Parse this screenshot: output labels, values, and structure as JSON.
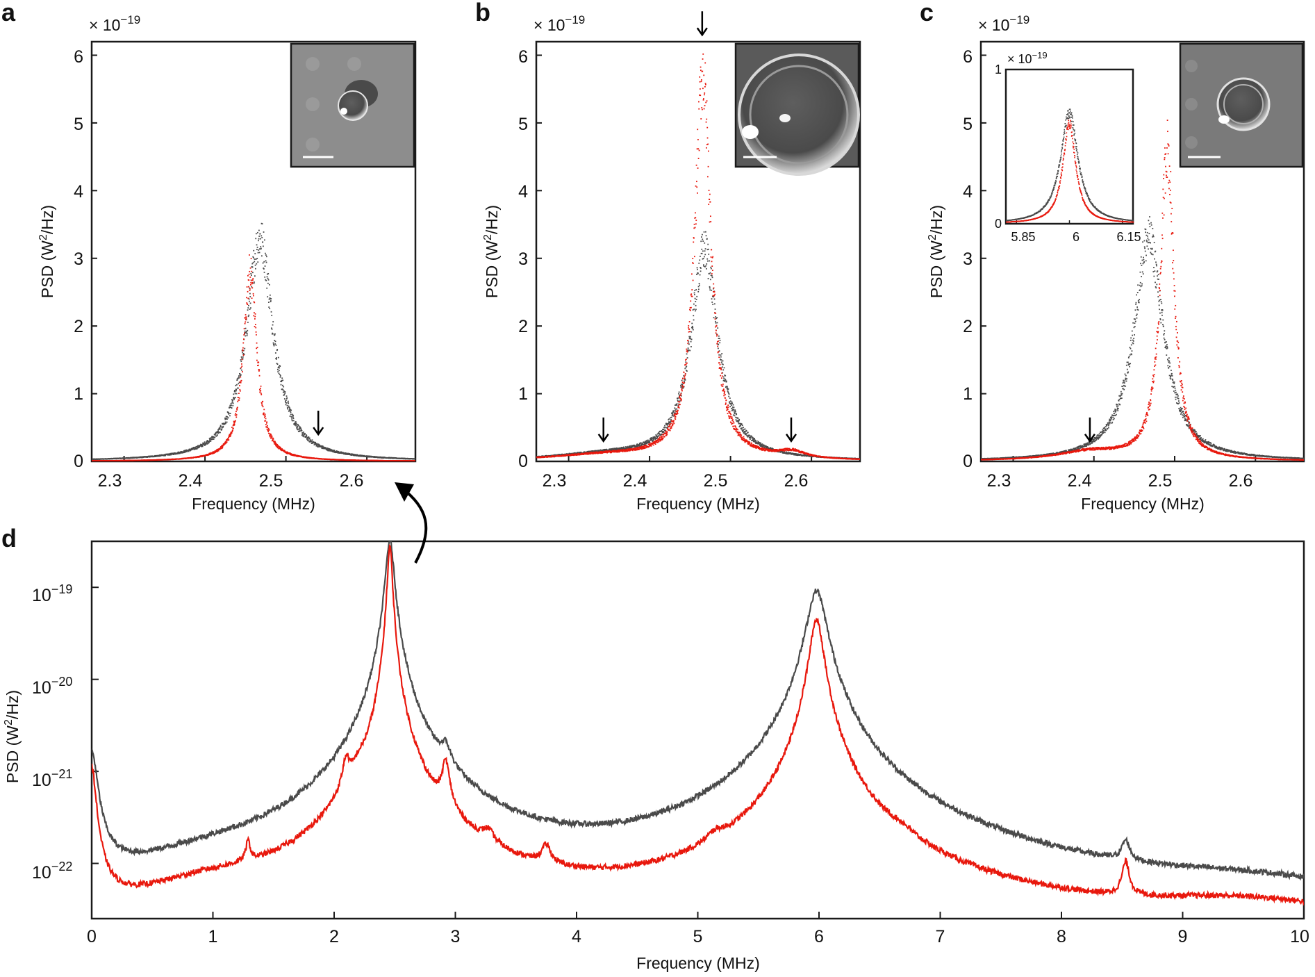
{
  "colors": {
    "grey": "#4a4a4a",
    "red": "#e8180d",
    "axis": "#1a1a1a"
  },
  "chart_data": [
    {
      "panel": "a",
      "type": "scatter",
      "xlabel": "Frequency (MHz)",
      "ylabel_pre": "PSD (W",
      "ylabel_sup": "2",
      "ylabel_post": "/Hz)",
      "multiplier_pre": "× 10",
      "multiplier_exp": "−19",
      "xlim": [
        2.26,
        2.66
      ],
      "ylim": [
        0,
        6.2
      ],
      "xticks": [
        "2.3",
        "2.4",
        "2.5",
        "2.6"
      ],
      "xtick_values": [
        2.3,
        2.4,
        2.5,
        2.6
      ],
      "yticks": [
        "0",
        "1",
        "2",
        "3",
        "4",
        "5",
        "6"
      ],
      "yticks_values": [
        0,
        1,
        2,
        3,
        4,
        5,
        6
      ],
      "series": [
        {
          "name": "grey",
          "center": 2.467,
          "peak": 3.3,
          "width": 0.02
        },
        {
          "name": "red",
          "center": 2.455,
          "peak": 2.8,
          "width": 0.01
        }
      ],
      "arrows": [
        {
          "x": 2.54,
          "y": 0.4
        }
      ],
      "inset_image": "bubble-micrograph"
    },
    {
      "panel": "b",
      "type": "scatter",
      "xlabel": "Frequency (MHz)",
      "ylabel_pre": "PSD (W",
      "ylabel_sup": "2",
      "ylabel_post": "/Hz)",
      "multiplier_pre": "× 10",
      "multiplier_exp": "−19",
      "xlim": [
        2.26,
        2.66
      ],
      "ylim": [
        0,
        6.2
      ],
      "xticks": [
        "2.3",
        "2.4",
        "2.5",
        "2.6"
      ],
      "xtick_values": [
        2.3,
        2.4,
        2.5,
        2.6
      ],
      "yticks": [
        "0",
        "1",
        "2",
        "3",
        "4",
        "5",
        "6"
      ],
      "yticks_values": [
        0,
        1,
        2,
        3,
        4,
        5,
        6
      ],
      "series": [
        {
          "name": "grey",
          "center": 2.467,
          "peak": 3.1,
          "width": 0.02
        },
        {
          "name": "red",
          "center": 2.465,
          "peak": 5.7,
          "width": 0.012
        }
      ],
      "arrows": [
        {
          "x": 2.343,
          "y": 0.3
        },
        {
          "x": 2.465,
          "y": 6.3
        },
        {
          "x": 2.575,
          "y": 0.3
        }
      ],
      "inset_image": "bubble-micrograph"
    },
    {
      "panel": "c",
      "type": "scatter",
      "xlabel": "Frequency (MHz)",
      "ylabel_pre": "PSD (W",
      "ylabel_sup": "2",
      "ylabel_post": "/Hz)",
      "multiplier_pre": "× 10",
      "multiplier_exp": "−19",
      "xlim": [
        2.26,
        2.66
      ],
      "ylim": [
        0,
        6.2
      ],
      "xticks": [
        "2.3",
        "2.4",
        "2.5",
        "2.6"
      ],
      "xtick_values": [
        2.3,
        2.4,
        2.5,
        2.6
      ],
      "yticks": [
        "0",
        "1",
        "2",
        "3",
        "4",
        "5",
        "6"
      ],
      "yticks_values": [
        0,
        1,
        2,
        3,
        4,
        5,
        6
      ],
      "series": [
        {
          "name": "grey",
          "center": 2.467,
          "peak": 3.3,
          "width": 0.022
        },
        {
          "name": "red",
          "center": 2.49,
          "peak": 4.6,
          "width": 0.01
        }
      ],
      "arrows": [
        {
          "x": 2.395,
          "y": 0.3
        }
      ],
      "inset_image": "bubble-micrograph",
      "inset_chart": {
        "multiplier_pre": "× 10",
        "multiplier_exp": "−19",
        "xlim": [
          5.82,
          6.18
        ],
        "ylim": [
          0,
          1.0
        ],
        "xticks": [
          "5.85",
          "6",
          "6.15"
        ],
        "xtick_values": [
          5.85,
          6.0,
          6.15
        ],
        "yticks": [
          "0",
          "1"
        ],
        "yticks_values": [
          0,
          1
        ],
        "series": [
          {
            "name": "grey",
            "center": 5.998,
            "peak": 0.72,
            "width": 0.03
          },
          {
            "name": "red",
            "center": 5.998,
            "peak": 0.65,
            "width": 0.022
          }
        ]
      }
    },
    {
      "panel": "d",
      "type": "line",
      "yscale": "log",
      "xlabel": "Frequency (MHz)",
      "ylabel_pre": "PSD (W",
      "ylabel_sup": "2",
      "ylabel_post": "/Hz)",
      "xlim": [
        0,
        10
      ],
      "ylim_log10": [
        -22.6,
        -18.5
      ],
      "xticks": [
        "0",
        "1",
        "2",
        "3",
        "4",
        "5",
        "6",
        "7",
        "8",
        "9",
        "10"
      ],
      "xtick_values": [
        0,
        1,
        2,
        3,
        4,
        5,
        6,
        7,
        8,
        9,
        10
      ],
      "yticks": [
        {
          "base": "10",
          "exp": "−19",
          "log10": -19
        },
        {
          "base": "10",
          "exp": "−20",
          "log10": -20
        },
        {
          "base": "10",
          "exp": "−21",
          "log10": -21
        },
        {
          "base": "10",
          "exp": "−22",
          "log10": -22
        }
      ],
      "series": [
        {
          "name": "grey",
          "base_log10": -22.52,
          "peaks": [
            {
              "center": 2.46,
              "amp": 3.3e-19,
              "width": 0.03
            },
            {
              "center": 5.98,
              "amp": 9.2e-20,
              "width": 0.07
            },
            {
              "center": 2.92,
              "amp": 7e-22,
              "width": 0.04
            },
            {
              "center": 8.53,
              "amp": 7e-23,
              "width": 0.035
            },
            {
              "center": 0.0,
              "amp": 1.6e-21,
              "width": 0.04
            }
          ]
        },
        {
          "name": "red",
          "base_log10": -22.58,
          "peaks": [
            {
              "center": 2.46,
              "amp": 2.8e-19,
              "width": 0.018
            },
            {
              "center": 5.98,
              "amp": 4.5e-20,
              "width": 0.05
            },
            {
              "center": 2.92,
              "amp": 9e-22,
              "width": 0.03
            },
            {
              "center": 2.1,
              "amp": 7.5e-22,
              "width": 0.03
            },
            {
              "center": 2.2,
              "amp": 2.5e-22,
              "width": 0.05
            },
            {
              "center": 1.29,
              "amp": 7e-23,
              "width": 0.02
            },
            {
              "center": 3.27,
              "amp": 6e-23,
              "width": 0.05
            },
            {
              "center": 3.75,
              "amp": 6e-23,
              "width": 0.04
            },
            {
              "center": 5.15,
              "amp": 4e-23,
              "width": 0.08
            },
            {
              "center": 6.68,
              "amp": 3e-23,
              "width": 0.1
            },
            {
              "center": 8.53,
              "amp": 6e-23,
              "width": 0.03
            },
            {
              "center": 0.0,
              "amp": 1.1e-21,
              "width": 0.03
            }
          ]
        }
      ]
    }
  ]
}
